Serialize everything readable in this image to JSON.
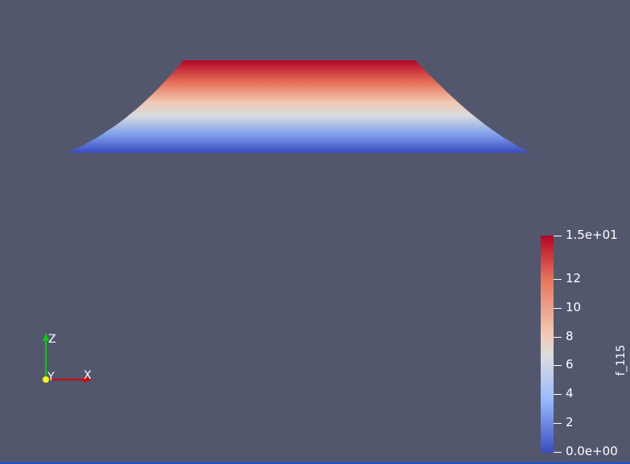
{
  "render_view": {
    "background_color": "#52576e",
    "surface": {
      "shape": "trapezoid-mesh",
      "colormap": "cool-to-warm",
      "colors": {
        "top": "#b40426",
        "mid": "#dddcdc",
        "bottom": "#3b4cc0"
      }
    },
    "scalar_bar": {
      "title": "f_115",
      "max_label": "1.5e+01",
      "min_label": "0.0e+00",
      "ticks": [
        "12",
        "10",
        "8",
        "6",
        "4",
        "2"
      ],
      "tick_values": [
        12,
        10,
        8,
        6,
        4,
        2
      ],
      "range": [
        0,
        15
      ]
    },
    "orientation_axes": {
      "z_label": "Z",
      "y_label": "Y",
      "x_label": "X",
      "z_color": "#00d000",
      "x_color": "#d00000",
      "y_color": "#ffff00"
    }
  }
}
